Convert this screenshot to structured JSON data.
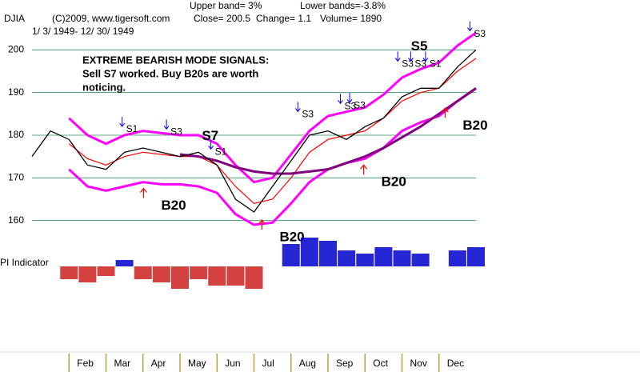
{
  "header": {
    "symbol": "DJIA",
    "copyright": "(C)2009, www.tigersoft.com",
    "close": "Close= 200.5",
    "change": "Change= 1.1",
    "volume": "Volume= 1890",
    "upper_band": "Upper band= 3%",
    "lower_band": "Lower bands=-3.8%",
    "date_range": "1/ 3/ 1949- 12/ 30/ 1949"
  },
  "chart_data": [
    {
      "type": "line",
      "annotations": [
        "EXTREME BEARISH MODE SIGNALS:",
        "Sell S7 worked.  Buy B20s are worth",
        "noticing."
      ],
      "x": [
        0,
        0.5,
        1,
        1.5,
        2,
        2.5,
        3,
        3.5,
        4,
        4.5,
        5,
        5.5,
        6,
        6.5,
        7,
        7.5,
        8,
        8.5,
        9,
        9.5,
        10,
        10.5,
        11,
        11.5,
        12
      ],
      "xlim": [
        0,
        12
      ],
      "xticks": [
        {
          "value": 1,
          "label": "Feb"
        },
        {
          "value": 2,
          "label": "Mar"
        },
        {
          "value": 3,
          "label": "Apr"
        },
        {
          "value": 4,
          "label": "May"
        },
        {
          "value": 5,
          "label": "Jun"
        },
        {
          "value": 6,
          "label": "Jul"
        },
        {
          "value": 7,
          "label": "Aug"
        },
        {
          "value": 8,
          "label": "Sep"
        },
        {
          "value": 9,
          "label": "Oct"
        },
        {
          "value": 10,
          "label": "Nov"
        },
        {
          "value": 11,
          "label": "Dec"
        }
      ],
      "ylim": [
        150,
        210
      ],
      "yticks": [
        160,
        170,
        180,
        190,
        200
      ],
      "grid": true,
      "grid_color": "#2e8b57",
      "month_tick_color": "#b8a040",
      "series": [
        {
          "color": "#ff00ff",
          "line_width": 3,
          "values": [
            null,
            null,
            184,
            180,
            178,
            180,
            181,
            180.5,
            180,
            180,
            178,
            173,
            169,
            170,
            175.5,
            181,
            184.5,
            185.5,
            186.5,
            189.5,
            193.5,
            195.5,
            197,
            201,
            204
          ]
        },
        {
          "color": "#ff00ff",
          "line_width": 3,
          "values": [
            null,
            null,
            172,
            168,
            167,
            168,
            169,
            168.5,
            168.5,
            168,
            166.5,
            161.5,
            159,
            159.5,
            164,
            169,
            172,
            173.5,
            174.5,
            177,
            181,
            183,
            184.5,
            188,
            191
          ]
        },
        {
          "color": "#ff0000",
          "line_width": 1.2,
          "values": [
            null,
            null,
            178,
            174.5,
            173,
            175,
            176,
            175.5,
            175,
            175,
            173,
            168,
            164,
            165,
            170,
            176,
            179,
            180,
            181,
            184,
            188,
            190,
            191,
            195,
            198
          ]
        },
        {
          "color": "#800080",
          "line_width": 3,
          "values": [
            null,
            null,
            null,
            null,
            null,
            null,
            null,
            null,
            175.5,
            175,
            174,
            172.5,
            171.5,
            171,
            171,
            171.5,
            172,
            173.5,
            175,
            177,
            179.5,
            182,
            185,
            188,
            191
          ]
        },
        {
          "color": "#000000",
          "line_width": 1.3,
          "values": [
            175,
            181,
            179,
            173,
            172,
            176,
            177,
            176,
            175,
            176,
            173,
            165,
            162,
            168,
            174,
            180,
            181,
            179,
            182,
            184,
            189,
            191,
            191,
            196,
            200
          ]
        }
      ],
      "signals": [
        {
          "label": "S1",
          "x": 2.5,
          "y": 181.3
        },
        {
          "label": "S3",
          "x": 3.7,
          "y": 180.7
        },
        {
          "label": "S1",
          "x": 4.9,
          "y": 176
        },
        {
          "label": "S3",
          "x": 7.25,
          "y": 184.8
        },
        {
          "label": "S3",
          "x": 8.4,
          "y": 186.7
        },
        {
          "label": "S3",
          "x": 8.65,
          "y": 186.9
        },
        {
          "label": "S3",
          "x": 9.95,
          "y": 196.6
        },
        {
          "label": "S3",
          "x": 10.3,
          "y": 196.6
        },
        {
          "label": "S1",
          "x": 10.7,
          "y": 196.6
        },
        {
          "label": "S3",
          "x": 11.9,
          "y": 203.7
        }
      ],
      "signal_color": "#0000ff",
      "major_signals": [
        {
          "label": "S7",
          "x": 4.85,
          "y": 179.7
        },
        {
          "label": "S5",
          "x": 10.5,
          "y": 200.7
        },
        {
          "label": "B20",
          "x": 3.75,
          "y": 163.4
        },
        {
          "label": "B20",
          "x": 6.95,
          "y": 156
        },
        {
          "label": "B20",
          "x": 9.7,
          "y": 168.9
        },
        {
          "label": "B20",
          "x": 11.9,
          "y": 182.2
        }
      ],
      "buy_color": "#ff0000"
    },
    {
      "type": "bar",
      "label": "PI Indicator",
      "x": [
        0,
        0.5,
        1,
        1.5,
        2,
        2.5,
        3,
        3.5,
        4,
        4.5,
        5,
        5.5,
        6,
        6.5,
        7,
        7.5,
        8,
        8.5,
        9,
        9.5,
        10,
        10.5,
        11,
        11.5,
        12
      ],
      "xlim": [
        0,
        12
      ],
      "ylim": [
        -60,
        60
      ],
      "values": [
        null,
        null,
        -20,
        -25,
        -15,
        10,
        -20,
        -25,
        -35,
        -20,
        -30,
        -30,
        -35,
        0,
        35,
        45,
        40,
        25,
        20,
        30,
        25,
        20,
        0,
        25,
        30
      ],
      "pos_color": "#0000cc",
      "neg_color": "#cc2020"
    }
  ]
}
